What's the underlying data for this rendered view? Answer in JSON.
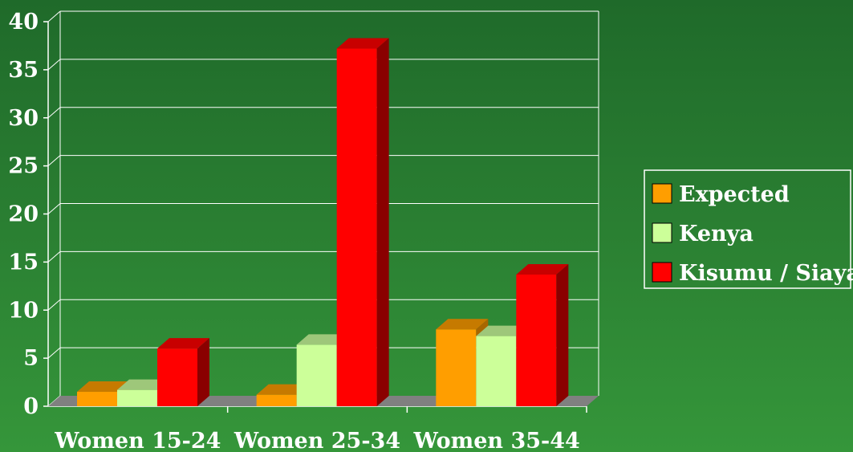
{
  "chart_data": {
    "type": "bar",
    "categories": [
      "Women 15-24",
      "Women 25-34",
      "Women 35-44"
    ],
    "series": [
      {
        "name": "Expected",
        "values": [
          1.5,
          1.2,
          8.0
        ],
        "color": "#ff9e00",
        "top_color": "#c67a00",
        "side_color": "#a86600"
      },
      {
        "name": "Kenya",
        "values": [
          1.7,
          6.4,
          7.3
        ],
        "color": "#ccff99",
        "top_color": "#9ec77a",
        "side_color": "#8fb26c"
      },
      {
        "name": "Kisumu / Siaya",
        "values": [
          6.0,
          37.2,
          13.7
        ],
        "color": "#ff0000",
        "top_color": "#c80000",
        "side_color": "#8a0000"
      }
    ],
    "y_ticks": [
      "0",
      "5",
      "10",
      "15",
      "20",
      "25",
      "30",
      "35",
      "40"
    ],
    "ylim": [
      0,
      40
    ],
    "grid": true,
    "legend_position": "right",
    "background_color": "#2a7f32",
    "floor_color": "#808080"
  }
}
